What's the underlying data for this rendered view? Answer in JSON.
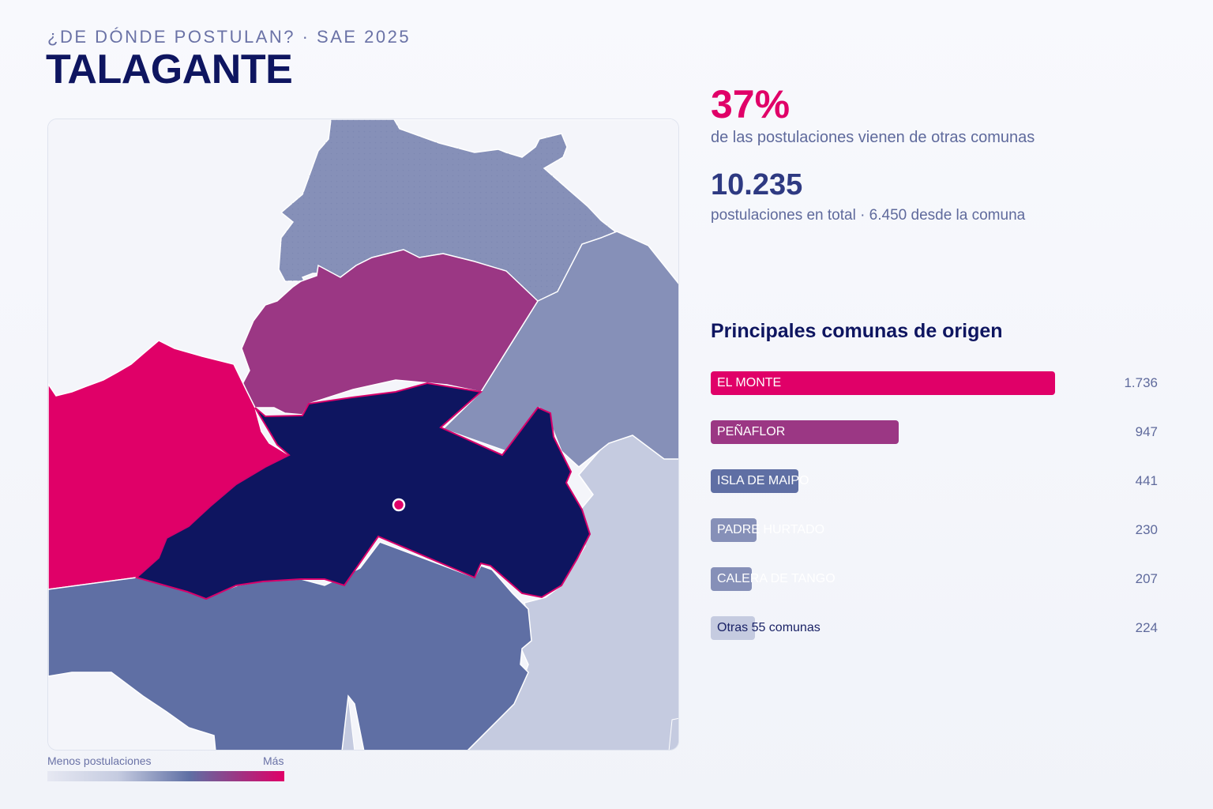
{
  "header": {
    "eyebrow": "¿DE DÓNDE POSTULAN? · SAE 2025",
    "title": "TALAGANTE"
  },
  "kpis": {
    "pct_value": "37%",
    "pct_caption": "de las postulaciones vienen de otras comunas",
    "total_value": "10.235",
    "total_caption": "postulaciones en total · 6.450 desde la comuna"
  },
  "legend": {
    "low_label": "Menos postulaciones",
    "high_label": "Más"
  },
  "ranking": {
    "title": "Principales comunas de origen",
    "max_value": 1736,
    "items": [
      {
        "label": "EL MONTE",
        "value": 1736,
        "display": "1.736",
        "color": "#e00068",
        "text_color": "#ffffff"
      },
      {
        "label": "PEÑAFLOR",
        "value": 947,
        "display": "947",
        "color": "#9b3784",
        "text_color": "#ffffff"
      },
      {
        "label": "ISLA DE MAIPO",
        "value": 441,
        "display": "441",
        "color": "#5f6fa4",
        "text_color": "#ffffff"
      },
      {
        "label": "PADRE HURTADO",
        "value": 230,
        "display": "230",
        "color": "#8690b8",
        "text_color": "#ffffff"
      },
      {
        "label": "CALERA DE TANGO",
        "value": 207,
        "display": "207",
        "color": "#8690b8",
        "text_color": "#ffffff"
      },
      {
        "label": "Otras 55 comunas",
        "value": 224,
        "display": "224",
        "color": "#c5cbe0",
        "text_color": "#1a2266"
      }
    ]
  },
  "map": {
    "colors": {
      "background": "#f4f5fa",
      "lightest": "#c5cbe0",
      "light": "#8690b8",
      "medium": "#5f6fa4",
      "high": "#9b3784",
      "highest": "#e00068",
      "focus": "#0e1560",
      "focus_border": "#d6006b"
    }
  }
}
